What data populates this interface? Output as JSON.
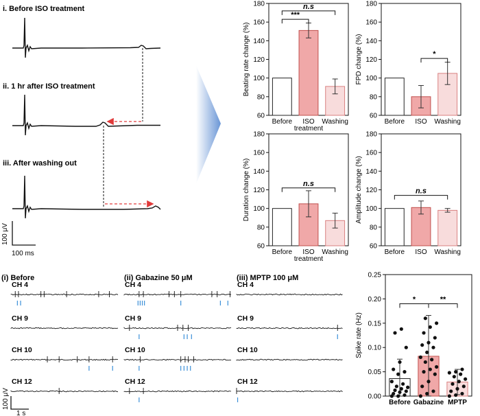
{
  "panel_a": {
    "labels": [
      "i. Before ISO treatment",
      "ii. 1 hr after ISO treatment",
      "iii. After washing out"
    ],
    "scale_y": "100 μV",
    "scale_x": "100 ms"
  },
  "panel_c": {
    "labels": [
      "(i) Before",
      "(ii) Gabazine 50 μM",
      "(iii) MPTP 100 μM"
    ],
    "channels": [
      "CH 4",
      "CH 9",
      "CH 10",
      "CH 12"
    ],
    "scale_y": "100 μV",
    "scale_x": "1 s"
  },
  "colors": {
    "before": "#ffffff",
    "iso": "#f0a8a8",
    "washing": "#f8dcdc",
    "spike_marks": "#3a8fd8",
    "arrow": "#e03a3a"
  },
  "chart_data": [
    {
      "type": "bar",
      "ylabel": "Beating rate change (%)",
      "categories": [
        "Before",
        "ISO\ntreatment",
        "Washing"
      ],
      "values": [
        100,
        151,
        91
      ],
      "errors": [
        0,
        8,
        8
      ],
      "ylim": [
        60,
        180
      ],
      "yticks": [
        60,
        80,
        100,
        120,
        140,
        160,
        180
      ],
      "brackets": [
        {
          "from": 0,
          "to": 1,
          "label": "***",
          "y": 163
        },
        {
          "from": 0,
          "to": 2,
          "label": "n.s",
          "y": 172
        }
      ]
    },
    {
      "type": "bar",
      "ylabel": "FPD change (%)",
      "categories": [
        "Before",
        "ISO",
        "Washing"
      ],
      "values": [
        100,
        80,
        105
      ],
      "errors": [
        0,
        12,
        12
      ],
      "ylim": [
        60,
        180
      ],
      "yticks": [
        60,
        80,
        100,
        120,
        140,
        160,
        180
      ],
      "brackets": [
        {
          "from": 1,
          "to": 2,
          "label": "*",
          "y": 121
        }
      ]
    },
    {
      "type": "bar",
      "ylabel": "Duration change (%)",
      "categories": [
        "Before",
        "ISO\ntreatment",
        "Washing"
      ],
      "values": [
        100,
        105,
        87
      ],
      "errors": [
        0,
        14,
        8
      ],
      "ylim": [
        60,
        180
      ],
      "yticks": [
        60,
        80,
        100,
        120,
        140,
        160,
        180
      ],
      "brackets": [
        {
          "from": 0,
          "to": 2,
          "label": "n.s",
          "y": 122
        }
      ]
    },
    {
      "type": "bar",
      "ylabel": "Amplitude change (%)",
      "categories": [
        "Before",
        "ISO",
        "Washing"
      ],
      "values": [
        100,
        101,
        98
      ],
      "errors": [
        0,
        7,
        2
      ],
      "ylim": [
        60,
        180
      ],
      "yticks": [
        60,
        80,
        100,
        120,
        140,
        160,
        180
      ],
      "brackets": [
        {
          "from": 0,
          "to": 2,
          "label": "n.s",
          "y": 114
        }
      ]
    },
    {
      "type": "bar",
      "ylabel": "Spike rate (Hz)",
      "categories": [
        "Before",
        "Gabazine",
        "MPTP"
      ],
      "values": [
        0.036,
        0.082,
        0.029
      ],
      "errors": [
        0.04,
        0.084,
        0.026
      ],
      "ylim": [
        0,
        0.25
      ],
      "yticks": [
        0.0,
        0.05,
        0.1,
        0.15,
        0.2,
        0.25
      ],
      "brackets": [
        {
          "from": 0,
          "to": 1,
          "label": "*",
          "y": 0.19
        },
        {
          "from": 1,
          "to": 2,
          "label": "**",
          "y": 0.19
        }
      ],
      "points": [
        [
          0.0,
          0.0,
          0.002,
          0.005,
          0.008,
          0.01,
          0.012,
          0.015,
          0.018,
          0.02,
          0.025,
          0.03,
          0.045,
          0.05,
          0.055,
          0.07,
          0.1,
          0.13,
          0.138
        ],
        [
          0.0,
          0.005,
          0.01,
          0.02,
          0.03,
          0.045,
          0.05,
          0.055,
          0.06,
          0.07,
          0.075,
          0.08,
          0.09,
          0.1,
          0.105,
          0.11,
          0.12,
          0.13,
          0.142,
          0.15,
          0.16
        ],
        [
          0.0,
          0.002,
          0.005,
          0.01,
          0.015,
          0.02,
          0.025,
          0.03,
          0.035,
          0.04,
          0.045,
          0.048,
          0.05,
          0.055
        ]
      ]
    }
  ]
}
